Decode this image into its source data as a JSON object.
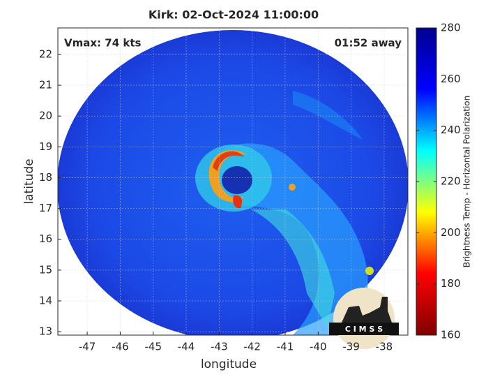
{
  "chart_data": {
    "type": "image",
    "title": "Kirk: 02-Oct-2024 11:00:00",
    "annotations": [
      "Vmax: 74 kts",
      "01:52 away"
    ],
    "xlabel": "longitude",
    "ylabel": "latitude",
    "xlim": [
      -47.89,
      -37.28
    ],
    "ylim": [
      12.89,
      22.86
    ],
    "xticks": [
      -47,
      -46,
      -45,
      -44,
      -43,
      -42,
      -41,
      -40,
      -39,
      -38
    ],
    "yticks": [
      13,
      14,
      15,
      16,
      17,
      18,
      19,
      20,
      21,
      22
    ],
    "grid": true,
    "colorbar": {
      "label": "Brightness Temp - Horizontal Polarization",
      "lim": [
        160,
        280
      ],
      "ticks": [
        160,
        180,
        200,
        220,
        240,
        260,
        280
      ],
      "colormap": [
        "#800000",
        "#ff0000",
        "#ffff00",
        "#00ffff",
        "#0000ff",
        "#00008f"
      ]
    },
    "logo": "C I M S S"
  }
}
